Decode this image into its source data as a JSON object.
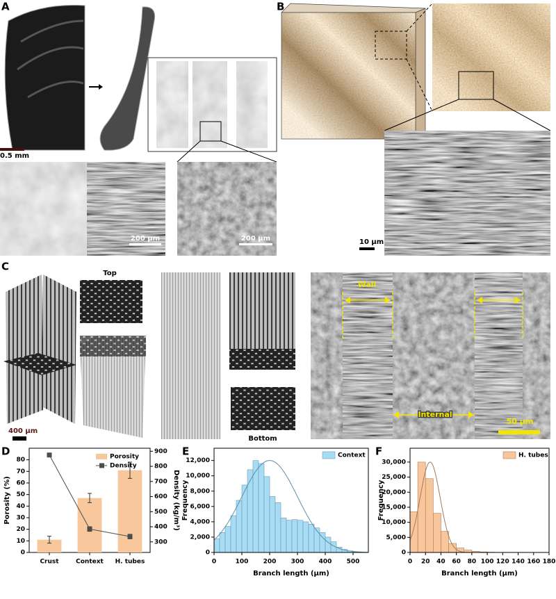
{
  "panel_labels": [
    "A",
    "B",
    "C",
    "D",
    "E",
    "F"
  ],
  "panel_a": {
    "scale_bar": "0.5 mm",
    "sem_scale_1": "200 µm",
    "sem_scale_2": "200 µm"
  },
  "panel_b": {
    "scale_bar": "10 µm"
  },
  "panel_c": {
    "top": "Top",
    "bottom": "Bottom",
    "scale_bar": "400 µm",
    "wall": "Wall",
    "internal": "Internal",
    "sem_scale": "50 µm"
  },
  "chart_data": [
    {
      "type": "combo",
      "categories": [
        "Crust",
        "Context",
        "H. tubes"
      ],
      "series": [
        {
          "name": "Porosity",
          "type": "bar",
          "color": "#f8c89c",
          "values": [
            11,
            47,
            71
          ],
          "errors": [
            3,
            4,
            7
          ]
        },
        {
          "name": "Density",
          "type": "line",
          "axis": "y2",
          "color": "#4d4d4d",
          "values": [
            875,
            385,
            335
          ],
          "errors": [
            12,
            15,
            15
          ]
        }
      ],
      "ylabel": "Porosity (%)",
      "y2label": "Density (kg/m³)",
      "ylim": [
        0,
        90
      ],
      "yticks": [
        0,
        10,
        20,
        30,
        40,
        50,
        60,
        70,
        80
      ],
      "y2lim": [
        230,
        920
      ],
      "y2ticks": [
        300,
        400,
        500,
        600,
        700,
        800,
        900
      ],
      "legend": "top-right"
    },
    {
      "type": "histogram",
      "name": "Context",
      "color": "#a8dcf4",
      "edge": "#5c8ea8",
      "bins": [
        0,
        20,
        40,
        60,
        80,
        100,
        120,
        140,
        160,
        180,
        200,
        220,
        240,
        260,
        280,
        300,
        320,
        340,
        360,
        380,
        400,
        420,
        440,
        460,
        480,
        500,
        520
      ],
      "values": [
        1800,
        2600,
        3400,
        4800,
        6800,
        8800,
        10800,
        12000,
        11600,
        9900,
        7300,
        6500,
        4500,
        4200,
        4300,
        4200,
        4000,
        3700,
        3200,
        2600,
        2000,
        1400,
        700,
        400,
        200,
        50
      ],
      "fit": {
        "mean": 200,
        "sd": 100,
        "peak": 12000,
        "color": "#5b8fa8"
      },
      "xlabel": "Branch length (µm)",
      "ylabel": "Frequency",
      "xlim": [
        0,
        555
      ],
      "xticks": [
        0,
        100,
        200,
        300,
        400,
        500
      ],
      "ylim": [
        0,
        13600
      ],
      "yticks": [
        0,
        {
          "value": 2000,
          "label": "2,000"
        },
        {
          "value": 4000,
          "label": "4,000"
        },
        {
          "value": 6000,
          "label": "6,000"
        },
        {
          "value": 8000,
          "label": "8,000"
        },
        {
          "value": 10000,
          "label": "10,000"
        },
        {
          "value": 12000,
          "label": "12,000"
        }
      ],
      "legend": "top-right"
    },
    {
      "type": "histogram",
      "name": "H. tubes",
      "color": "#f8c69a",
      "edge": "#9a7050",
      "bins": [
        0,
        10,
        20,
        30,
        40,
        50,
        60,
        70,
        80,
        90,
        100,
        110,
        120
      ],
      "values": [
        13500,
        30000,
        24500,
        13000,
        7000,
        3000,
        1500,
        800,
        400,
        200,
        100,
        50
      ],
      "fit": {
        "mean": 26,
        "sd": 13,
        "peak": 30000,
        "color": "#a57a58"
      },
      "xlabel": "Branch length (µm)",
      "ylabel": "Frequency",
      "xlim": [
        0,
        180
      ],
      "xticks": [
        0,
        20,
        40,
        60,
        80,
        100,
        120,
        140,
        160,
        180
      ],
      "ylim": [
        0,
        34600
      ],
      "yticks": [
        0,
        {
          "value": 5000,
          "label": "5,000"
        },
        {
          "value": 10000,
          "label": "10,000"
        },
        {
          "value": 15000,
          "label": "15,000"
        },
        {
          "value": 20000,
          "label": "20,000"
        },
        {
          "value": 25000,
          "label": "25,000"
        },
        {
          "value": 30000,
          "label": "30,000"
        }
      ],
      "legend": "top-right"
    }
  ]
}
